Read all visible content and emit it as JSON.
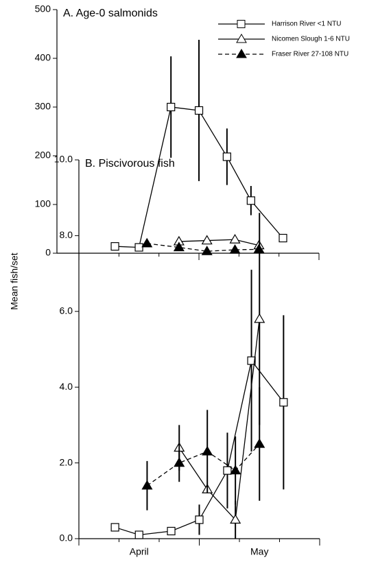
{
  "chart_data": [
    {
      "type": "line",
      "title": "A.  Age-0 salmonids",
      "ylabel": "Mean fish/set",
      "xlim": [
        -5.5,
        60
      ],
      "minor_xticks": [
        0,
        10,
        20,
        30,
        40,
        50,
        60
      ],
      "ylim": [
        0,
        500
      ],
      "yticks": [
        0,
        100,
        200,
        300,
        400,
        500
      ],
      "legend": "upper right",
      "series": [
        {
          "name": "Harrison River <1 NTU",
          "color": "#000000",
          "marker": "square",
          "filled": false,
          "dashed": false,
          "x": [
            9,
            15,
            23,
            30,
            37,
            43,
            51
          ],
          "values": [
            14,
            12,
            300,
            293,
            198,
            108,
            31
          ],
          "errors": [
            null,
            null,
            104,
            145,
            58,
            30,
            null
          ]
        },
        {
          "name": "Nicomen Slough 1-6 NTU",
          "color": "#000000",
          "marker": "triangle",
          "filled": false,
          "dashed": false,
          "x": [
            25,
            32,
            39,
            45
          ],
          "values": [
            24,
            26,
            28,
            16
          ],
          "errors": [
            null,
            null,
            null,
            null
          ]
        },
        {
          "name": "Fraser River 27-108 NTU",
          "color": "#000000",
          "marker": "triangle",
          "filled": true,
          "dashed": true,
          "x": [
            17,
            25,
            32,
            39,
            45
          ],
          "values": [
            20,
            12,
            4,
            7,
            8
          ],
          "errors": [
            null,
            null,
            null,
            null,
            null
          ]
        }
      ]
    },
    {
      "type": "line",
      "title": "B.  Piscivorous fish",
      "xlim": [
        0,
        60
      ],
      "minor_xticks": [
        0,
        10,
        20,
        30,
        40,
        50,
        60
      ],
      "xticks": [
        {
          "value": 15,
          "label": "April"
        },
        {
          "value": 45,
          "label": "May"
        }
      ],
      "ylim": [
        0,
        10
      ],
      "yticks": [
        {
          "value": 0,
          "label": "0.0"
        },
        {
          "value": 2,
          "label": "2.0"
        },
        {
          "value": 4,
          "label": "4.0"
        },
        {
          "value": 6,
          "label": "6.0"
        },
        {
          "value": 8,
          "label": "8.0"
        },
        {
          "value": 10,
          "label": "10.0"
        }
      ],
      "series": [
        {
          "color": "#000000",
          "marker": "square",
          "filled": false,
          "dashed": false,
          "x": [
            9,
            15,
            23,
            30,
            37,
            43,
            51
          ],
          "values": [
            0.3,
            0.1,
            0.2,
            0.5,
            1.8,
            4.7,
            3.6
          ],
          "errors": [
            null,
            null,
            null,
            0.4,
            1.0,
            2.4,
            2.3
          ]
        },
        {
          "color": "#000000",
          "marker": "triangle",
          "filled": false,
          "dashed": false,
          "x": [
            25,
            32,
            39,
            45
          ],
          "values": [
            2.4,
            1.3,
            0.5,
            5.8
          ],
          "errors": [
            0.6,
            null,
            0.5,
            2.8
          ]
        },
        {
          "color": "#000000",
          "marker": "triangle",
          "filled": true,
          "dashed": true,
          "x": [
            17,
            25,
            32,
            39,
            45
          ],
          "values": [
            1.4,
            2.0,
            2.3,
            1.8,
            2.5
          ],
          "errors": [
            0.65,
            0.5,
            1.1,
            0.9,
            1.5
          ]
        }
      ]
    }
  ]
}
